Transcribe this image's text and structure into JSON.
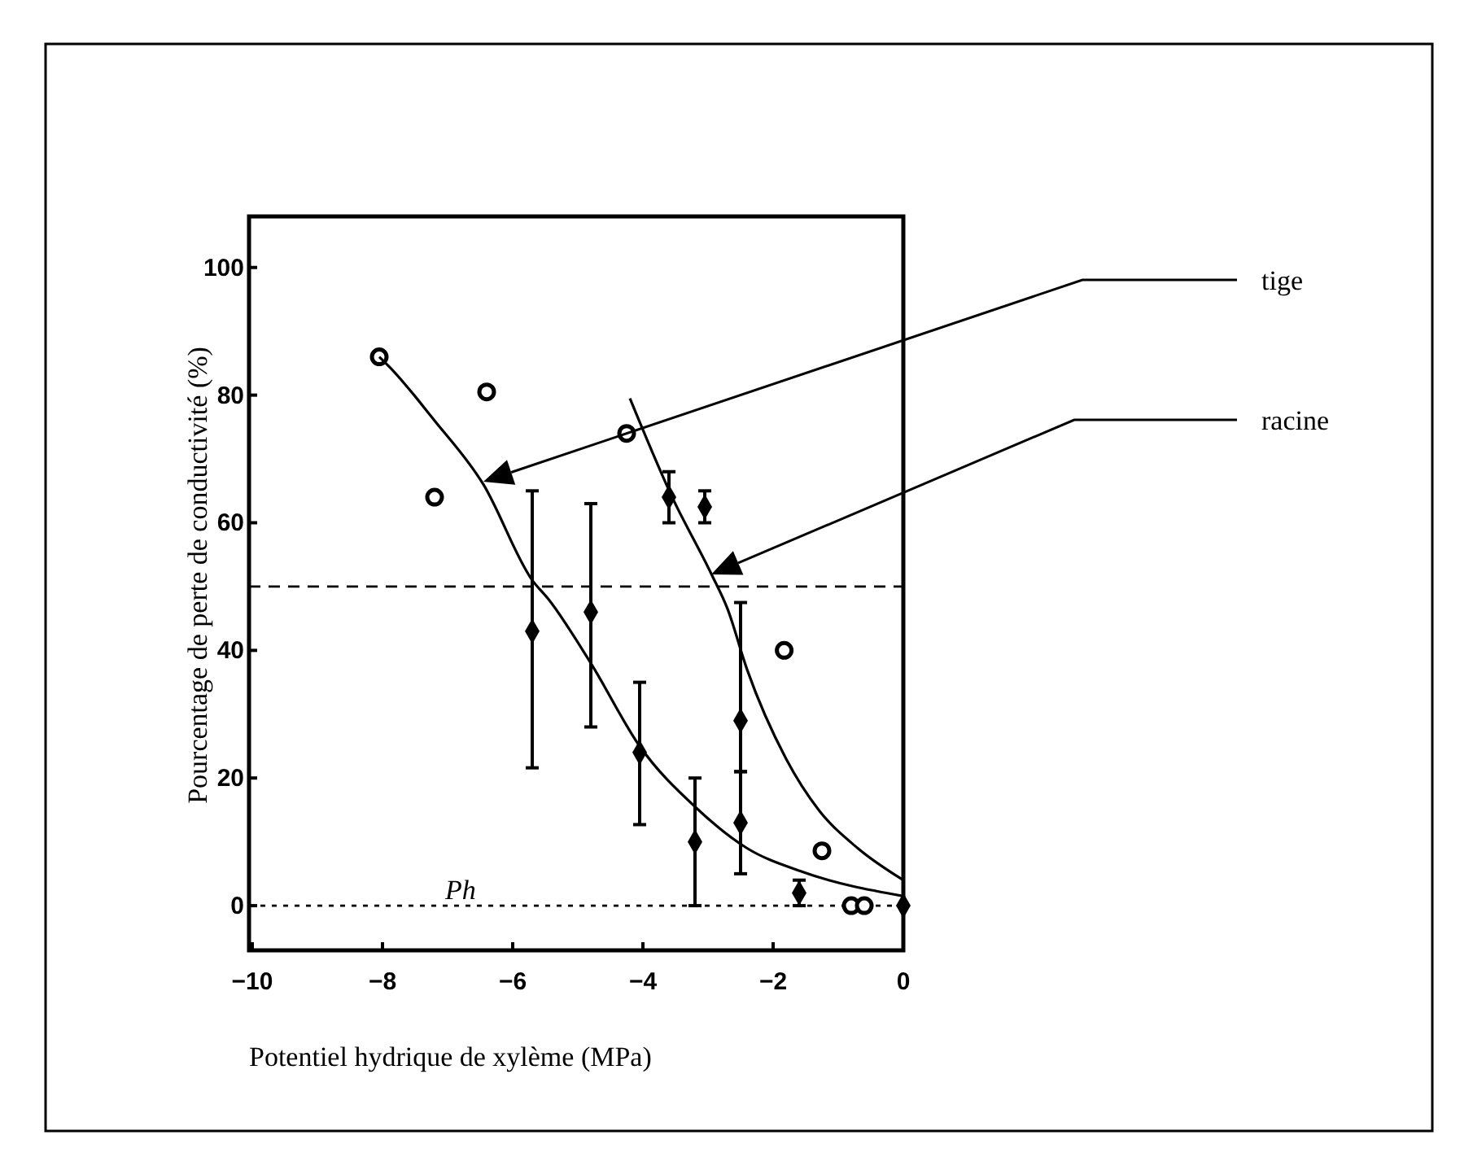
{
  "chart_data": {
    "type": "scatter",
    "xlabel": "Potentiel hydrique de xylème (MPa)",
    "ylabel": "Pourcentage de perte de conductivité (%)",
    "xlim": [
      -10.05,
      0
    ],
    "ylim": [
      -7,
      108
    ],
    "xticks": [
      {
        "value": -10,
        "label": "−10"
      },
      {
        "value": -8,
        "label": "−8"
      },
      {
        "value": -6,
        "label": "−6"
      },
      {
        "value": -4,
        "label": "−4"
      },
      {
        "value": -2,
        "label": "−2"
      },
      0
    ],
    "yticks": [
      0,
      20,
      40,
      60,
      80,
      100
    ],
    "grid": false,
    "series": [
      {
        "type": "scatter",
        "marker": "circle",
        "color": "#000000",
        "x": [
          -8.05,
          -7.2,
          -6.4,
          -4.25,
          -1.83,
          -1.25,
          -0.8,
          -0.6
        ],
        "values": [
          86,
          64,
          80.5,
          74,
          40,
          8.6,
          0,
          0
        ]
      },
      {
        "type": "scatter",
        "marker": "diamond",
        "color": "#000000",
        "x": [
          -5.7,
          -4.8,
          -4.05,
          -3.6,
          -3.2,
          -3.05,
          -2.5,
          -2.5,
          -1.6,
          0
        ],
        "values": [
          43,
          46,
          24,
          64,
          10,
          62.5,
          29,
          13,
          2,
          0
        ],
        "errors": [
          [
            21.6,
            65
          ],
          [
            28,
            63
          ],
          [
            12.7,
            35
          ],
          [
            60,
            68
          ],
          [
            0,
            20
          ],
          [
            60,
            65
          ],
          [
            21,
            47.5
          ],
          [
            5,
            21
          ],
          [
            0,
            4
          ],
          null
        ]
      },
      {
        "type": "line",
        "marker": "none",
        "line_style": "solid",
        "color": "#000000",
        "x": [
          -8.05,
          -7.9,
          -7.2,
          -6.45,
          -5.7,
          -5.45,
          -4.8,
          -4.05,
          -3.2,
          -2.4,
          -1.55,
          0
        ],
        "values": [
          86,
          84.5,
          76,
          66,
          51,
          48,
          38,
          25,
          15.5,
          9,
          5.3,
          1.5
        ]
      },
      {
        "type": "line",
        "marker": "none",
        "line_style": "solid",
        "color": "#000000",
        "x": [
          -4.2,
          -3.55,
          -2.95,
          -2.7,
          -2.4,
          -1.8,
          -1.3,
          -0.7,
          0
        ],
        "values": [
          79.5,
          64,
          52,
          46.5,
          37,
          23,
          15,
          9,
          4
        ]
      }
    ],
    "ref_lines": [
      {
        "axis": "y",
        "value": 50,
        "line_style": "dashed",
        "color": "#000000"
      },
      {
        "axis": "y",
        "value": 0,
        "line_style": "dotted",
        "color": "#000000"
      }
    ],
    "annotations": [
      "tige",
      "racine",
      {
        "text": "Ph",
        "x": -6.8,
        "y": 0
      }
    ]
  }
}
